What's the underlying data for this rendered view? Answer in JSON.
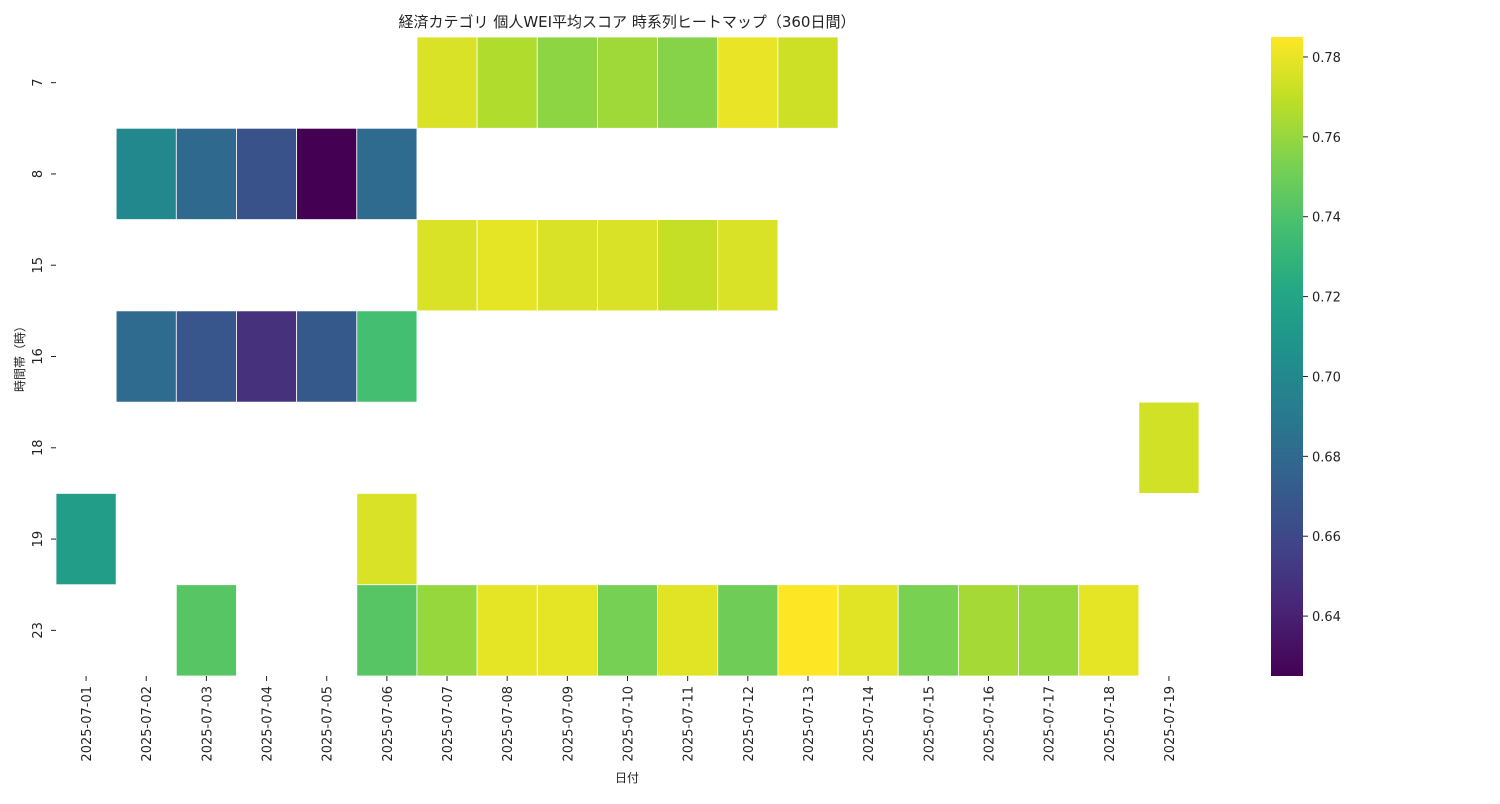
{
  "chart_data": {
    "type": "heatmap",
    "title": "経済カテゴリ 個人WEI平均スコア 時系列ヒートマップ（360日間）",
    "xlabel": "日付",
    "ylabel": "時間帯（時）",
    "x": [
      "2025-07-01",
      "2025-07-02",
      "2025-07-03",
      "2025-07-04",
      "2025-07-05",
      "2025-07-06",
      "2025-07-07",
      "2025-07-08",
      "2025-07-09",
      "2025-07-10",
      "2025-07-11",
      "2025-07-12",
      "2025-07-13",
      "2025-07-14",
      "2025-07-15",
      "2025-07-16",
      "2025-07-17",
      "2025-07-18",
      "2025-07-19"
    ],
    "y": [
      "7",
      "8",
      "15",
      "16",
      "18",
      "19",
      "23"
    ],
    "values": [
      [
        null,
        null,
        null,
        null,
        null,
        null,
        0.776,
        0.766,
        0.758,
        0.762,
        0.756,
        0.78,
        0.773,
        null,
        null,
        null,
        null,
        null,
        null
      ],
      [
        null,
        0.7,
        0.68,
        0.666,
        0.625,
        0.681,
        null,
        null,
        null,
        null,
        null,
        null,
        null,
        null,
        null,
        null,
        null,
        null,
        null
      ],
      [
        null,
        null,
        null,
        null,
        null,
        null,
        0.776,
        0.779,
        0.776,
        0.776,
        0.771,
        0.776,
        null,
        null,
        null,
        null,
        null,
        null,
        null
      ],
      [
        null,
        0.681,
        0.668,
        0.648,
        0.67,
        0.737,
        null,
        null,
        null,
        null,
        null,
        null,
        null,
        null,
        null,
        null,
        null,
        null,
        null
      ],
      [
        null,
        null,
        null,
        null,
        null,
        null,
        null,
        null,
        null,
        null,
        null,
        null,
        null,
        null,
        null,
        null,
        null,
        null,
        0.774
      ],
      [
        0.714,
        null,
        null,
        null,
        null,
        0.776,
        null,
        null,
        null,
        null,
        null,
        null,
        null,
        null,
        null,
        null,
        null,
        null,
        null
      ],
      [
        null,
        null,
        0.743,
        null,
        null,
        0.743,
        0.76,
        0.779,
        0.779,
        0.752,
        0.778,
        0.75,
        0.785,
        0.778,
        0.753,
        0.763,
        0.76,
        0.779,
        null
      ]
    ],
    "colorbar": {
      "colormap": "viridis",
      "vmin": 0.625,
      "vmax": 0.785,
      "ticks": [
        "0.64",
        "0.66",
        "0.68",
        "0.70",
        "0.72",
        "0.74",
        "0.76",
        "0.78"
      ]
    },
    "grid": false
  }
}
